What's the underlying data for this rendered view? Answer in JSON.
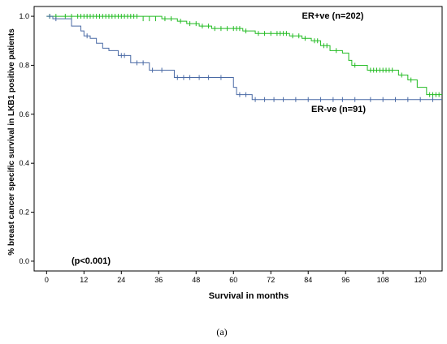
{
  "chart_data": {
    "type": "line",
    "subtype": "kaplan-meier step",
    "title": "",
    "xlabel": "Survival in months",
    "ylabel": "% breast cancer specific survival in LKB1 positive patients",
    "xlim": [
      -4,
      127
    ],
    "ylim": [
      -0.04,
      1.04
    ],
    "xticks": [
      0,
      12,
      24,
      36,
      48,
      60,
      72,
      84,
      96,
      108,
      120
    ],
    "yticks": [
      0.0,
      0.2,
      0.4,
      0.6,
      0.8,
      1.0
    ],
    "grid": false,
    "legend": "none",
    "annotations": [
      {
        "text": "ER+ve (n=202)",
        "x": 82,
        "y": 0.99
      },
      {
        "text": "ER-ve (n=91)",
        "x": 85,
        "y": 0.61
      },
      {
        "text": "(p<0.001)",
        "x": 8,
        "y": -0.01
      }
    ],
    "caption": "(a)",
    "series": [
      {
        "color": "#22bb22",
        "steps": [
          [
            0,
            1.0
          ],
          [
            37,
            0.99
          ],
          [
            42,
            0.98
          ],
          [
            45,
            0.97
          ],
          [
            49,
            0.96
          ],
          [
            53,
            0.95
          ],
          [
            63,
            0.94
          ],
          [
            67,
            0.93
          ],
          [
            78,
            0.92
          ],
          [
            82,
            0.91
          ],
          [
            85,
            0.9
          ],
          [
            88,
            0.88
          ],
          [
            91,
            0.86
          ],
          [
            95,
            0.85
          ],
          [
            97,
            0.82
          ],
          [
            98,
            0.8
          ],
          [
            103,
            0.78
          ],
          [
            113,
            0.76
          ],
          [
            116,
            0.74
          ],
          [
            119,
            0.71
          ],
          [
            122,
            0.68
          ],
          [
            127,
            0.68
          ]
        ],
        "censored": [
          [
            1,
            1.0
          ],
          [
            3,
            1.0
          ],
          [
            6,
            1.0
          ],
          [
            8,
            1.0
          ],
          [
            10,
            1.0
          ],
          [
            11,
            1.0
          ],
          [
            12,
            1.0
          ],
          [
            13,
            1.0
          ],
          [
            14,
            1.0
          ],
          [
            15,
            1.0
          ],
          [
            16,
            1.0
          ],
          [
            17,
            1.0
          ],
          [
            18,
            1.0
          ],
          [
            19,
            1.0
          ],
          [
            20,
            1.0
          ],
          [
            21,
            1.0
          ],
          [
            22,
            1.0
          ],
          [
            23,
            1.0
          ],
          [
            24,
            1.0
          ],
          [
            25,
            1.0
          ],
          [
            26,
            1.0
          ],
          [
            27,
            1.0
          ],
          [
            28,
            1.0
          ],
          [
            29,
            1.0
          ],
          [
            31,
            0.99
          ],
          [
            33,
            0.99
          ],
          [
            35,
            0.99
          ],
          [
            38,
            0.99
          ],
          [
            40,
            0.99
          ],
          [
            43,
            0.98
          ],
          [
            46,
            0.97
          ],
          [
            48,
            0.97
          ],
          [
            50,
            0.96
          ],
          [
            52,
            0.96
          ],
          [
            54,
            0.95
          ],
          [
            56,
            0.95
          ],
          [
            58,
            0.95
          ],
          [
            60,
            0.95
          ],
          [
            61,
            0.95
          ],
          [
            62,
            0.95
          ],
          [
            64,
            0.94
          ],
          [
            68,
            0.93
          ],
          [
            70,
            0.93
          ],
          [
            72,
            0.93
          ],
          [
            74,
            0.93
          ],
          [
            75,
            0.93
          ],
          [
            76,
            0.93
          ],
          [
            77,
            0.93
          ],
          [
            79,
            0.92
          ],
          [
            81,
            0.92
          ],
          [
            83,
            0.91
          ],
          [
            86,
            0.9
          ],
          [
            87,
            0.9
          ],
          [
            89,
            0.88
          ],
          [
            90,
            0.88
          ],
          [
            93,
            0.86
          ],
          [
            99,
            0.8
          ],
          [
            104,
            0.78
          ],
          [
            105,
            0.78
          ],
          [
            106,
            0.78
          ],
          [
            107,
            0.78
          ],
          [
            108,
            0.78
          ],
          [
            109,
            0.78
          ],
          [
            110,
            0.78
          ],
          [
            111,
            0.78
          ],
          [
            114,
            0.76
          ],
          [
            117,
            0.74
          ],
          [
            123,
            0.68
          ],
          [
            124,
            0.68
          ],
          [
            125,
            0.68
          ],
          [
            126,
            0.68
          ]
        ]
      },
      {
        "color": "#4a6aa5",
        "steps": [
          [
            0,
            1.0
          ],
          [
            2,
            0.99
          ],
          [
            8,
            0.96
          ],
          [
            11,
            0.94
          ],
          [
            12,
            0.92
          ],
          [
            14,
            0.91
          ],
          [
            16,
            0.89
          ],
          [
            18,
            0.87
          ],
          [
            20,
            0.86
          ],
          [
            23,
            0.84
          ],
          [
            27,
            0.81
          ],
          [
            33,
            0.78
          ],
          [
            41,
            0.75
          ],
          [
            60,
            0.71
          ],
          [
            61,
            0.68
          ],
          [
            66,
            0.66
          ],
          [
            127,
            0.66
          ]
        ],
        "censored": [
          [
            1,
            1.0
          ],
          [
            3,
            0.99
          ],
          [
            13,
            0.92
          ],
          [
            24,
            0.84
          ],
          [
            25,
            0.84
          ],
          [
            29,
            0.81
          ],
          [
            31,
            0.81
          ],
          [
            34,
            0.78
          ],
          [
            37,
            0.78
          ],
          [
            42,
            0.75
          ],
          [
            44,
            0.75
          ],
          [
            46,
            0.75
          ],
          [
            49,
            0.75
          ],
          [
            52,
            0.75
          ],
          [
            56,
            0.75
          ],
          [
            62,
            0.68
          ],
          [
            64,
            0.68
          ],
          [
            67,
            0.66
          ],
          [
            70,
            0.66
          ],
          [
            73,
            0.66
          ],
          [
            76,
            0.66
          ],
          [
            80,
            0.66
          ],
          [
            84,
            0.66
          ],
          [
            88,
            0.66
          ],
          [
            92,
            0.66
          ],
          [
            95,
            0.66
          ],
          [
            99,
            0.66
          ],
          [
            104,
            0.66
          ],
          [
            108,
            0.66
          ],
          [
            112,
            0.66
          ],
          [
            116,
            0.66
          ],
          [
            120,
            0.66
          ],
          [
            124,
            0.66
          ]
        ]
      }
    ]
  }
}
